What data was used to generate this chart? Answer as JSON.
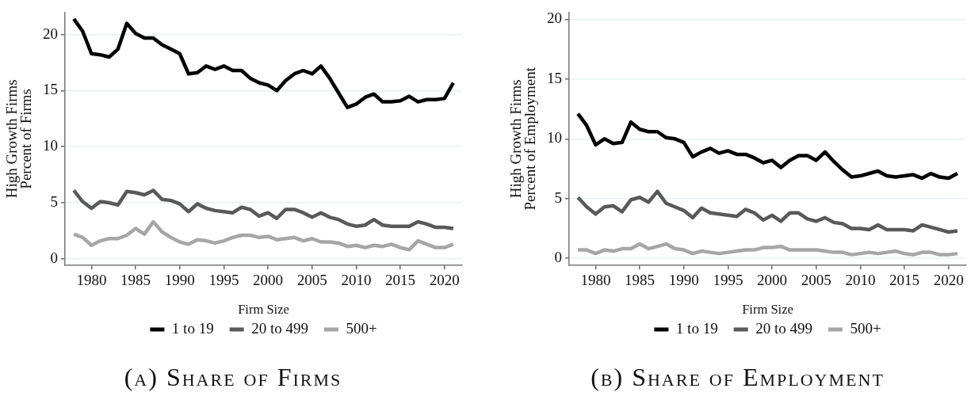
{
  "chart_data": [
    {
      "type": "line",
      "title": "(a) Share of Firms",
      "ylabel": "High Growth Firms\nPercent of Firms",
      "legend_title": "Firm Size",
      "legend": "bottom",
      "grid": "y",
      "x": [
        1978,
        1979,
        1980,
        1981,
        1982,
        1983,
        1984,
        1985,
        1986,
        1987,
        1988,
        1989,
        1990,
        1991,
        1992,
        1993,
        1994,
        1995,
        1996,
        1997,
        1998,
        1999,
        2000,
        2001,
        2002,
        2003,
        2004,
        2005,
        2006,
        2007,
        2008,
        2009,
        2010,
        2011,
        2012,
        2013,
        2014,
        2015,
        2016,
        2017,
        2018,
        2019,
        2020,
        2021
      ],
      "xlim": [
        1977,
        2022
      ],
      "xticks": [
        1980,
        1985,
        1990,
        1995,
        2000,
        2005,
        2010,
        2015,
        2020
      ],
      "ylim": [
        -0.6,
        22
      ],
      "yticks": [
        0,
        5,
        10,
        15,
        20
      ],
      "series": [
        {
          "name": "1 to 19",
          "color": "#000000",
          "values": [
            21.4,
            20.3,
            18.3,
            18.2,
            18.0,
            18.7,
            21.0,
            20.1,
            19.7,
            19.7,
            19.1,
            18.7,
            18.3,
            16.5,
            16.6,
            17.2,
            16.9,
            17.2,
            16.8,
            16.8,
            16.1,
            15.7,
            15.5,
            15.0,
            15.9,
            16.5,
            16.8,
            16.5,
            17.2,
            16.1,
            14.8,
            13.5,
            13.8,
            14.4,
            14.7,
            14.0,
            14.0,
            14.1,
            14.5,
            14.0,
            14.2,
            14.2,
            14.3,
            15.7
          ]
        },
        {
          "name": "20 to 499",
          "color": "#595959",
          "values": [
            6.1,
            5.1,
            4.5,
            5.1,
            5.0,
            4.8,
            6.0,
            5.9,
            5.7,
            6.1,
            5.3,
            5.2,
            4.9,
            4.2,
            4.9,
            4.5,
            4.3,
            4.2,
            4.1,
            4.6,
            4.4,
            3.8,
            4.1,
            3.6,
            4.4,
            4.4,
            4.1,
            3.7,
            4.1,
            3.7,
            3.5,
            3.1,
            2.9,
            3.0,
            3.5,
            3.0,
            2.9,
            2.9,
            2.9,
            3.3,
            3.1,
            2.8,
            2.8,
            2.7
          ]
        },
        {
          "name": "500+",
          "color": "#a6a6a6",
          "values": [
            2.2,
            1.9,
            1.2,
            1.6,
            1.8,
            1.8,
            2.1,
            2.7,
            2.2,
            3.3,
            2.4,
            1.9,
            1.5,
            1.3,
            1.7,
            1.6,
            1.4,
            1.6,
            1.9,
            2.1,
            2.1,
            1.9,
            2.0,
            1.7,
            1.8,
            1.9,
            1.6,
            1.8,
            1.5,
            1.5,
            1.4,
            1.1,
            1.2,
            1.0,
            1.2,
            1.1,
            1.3,
            1.0,
            0.8,
            1.6,
            1.3,
            1.0,
            1.0,
            1.3
          ]
        }
      ]
    },
    {
      "type": "line",
      "title": "(b) Share of Employment",
      "ylabel": "High Growth Firms\nPercent of Employment",
      "legend_title": "Firm Size",
      "legend": "bottom",
      "grid": "y",
      "x": [
        1978,
        1979,
        1980,
        1981,
        1982,
        1983,
        1984,
        1985,
        1986,
        1987,
        1988,
        1989,
        1990,
        1991,
        1992,
        1993,
        1994,
        1995,
        1996,
        1997,
        1998,
        1999,
        2000,
        2001,
        2002,
        2003,
        2004,
        2005,
        2006,
        2007,
        2008,
        2009,
        2010,
        2011,
        2012,
        2013,
        2014,
        2015,
        2016,
        2017,
        2018,
        2019,
        2020,
        2021
      ],
      "xlim": [
        1977,
        2022
      ],
      "xticks": [
        1980,
        1985,
        1990,
        1995,
        2000,
        2005,
        2010,
        2015,
        2020
      ],
      "ylim": [
        -0.6,
        20.6
      ],
      "yticks": [
        0,
        5,
        10,
        15,
        20
      ],
      "series": [
        {
          "name": "1 to 19",
          "color": "#000000",
          "values": [
            12.1,
            11.1,
            9.5,
            10.0,
            9.6,
            9.7,
            11.4,
            10.8,
            10.6,
            10.6,
            10.1,
            10.0,
            9.7,
            8.5,
            8.9,
            9.2,
            8.8,
            9.0,
            8.7,
            8.7,
            8.4,
            8.0,
            8.2,
            7.6,
            8.2,
            8.6,
            8.6,
            8.2,
            8.9,
            8.1,
            7.4,
            6.8,
            6.9,
            7.1,
            7.3,
            6.9,
            6.8,
            6.9,
            7.0,
            6.7,
            7.1,
            6.8,
            6.7,
            7.1
          ]
        },
        {
          "name": "20 to 499",
          "color": "#595959",
          "values": [
            5.1,
            4.3,
            3.7,
            4.3,
            4.4,
            3.9,
            4.9,
            5.1,
            4.7,
            5.6,
            4.6,
            4.3,
            4.0,
            3.4,
            4.2,
            3.8,
            3.7,
            3.6,
            3.5,
            4.1,
            3.8,
            3.2,
            3.6,
            3.1,
            3.8,
            3.8,
            3.3,
            3.1,
            3.4,
            3.0,
            2.9,
            2.5,
            2.5,
            2.4,
            2.8,
            2.4,
            2.4,
            2.4,
            2.3,
            2.8,
            2.6,
            2.4,
            2.2,
            2.3
          ]
        },
        {
          "name": "500+",
          "color": "#a6a6a6",
          "values": [
            0.7,
            0.7,
            0.4,
            0.7,
            0.6,
            0.8,
            0.8,
            1.2,
            0.8,
            1.0,
            1.2,
            0.8,
            0.7,
            0.4,
            0.6,
            0.5,
            0.4,
            0.5,
            0.6,
            0.7,
            0.7,
            0.9,
            0.9,
            1.0,
            0.7,
            0.7,
            0.7,
            0.7,
            0.6,
            0.5,
            0.5,
            0.3,
            0.4,
            0.5,
            0.4,
            0.5,
            0.6,
            0.4,
            0.3,
            0.5,
            0.5,
            0.3,
            0.3,
            0.4
          ]
        }
      ]
    }
  ]
}
